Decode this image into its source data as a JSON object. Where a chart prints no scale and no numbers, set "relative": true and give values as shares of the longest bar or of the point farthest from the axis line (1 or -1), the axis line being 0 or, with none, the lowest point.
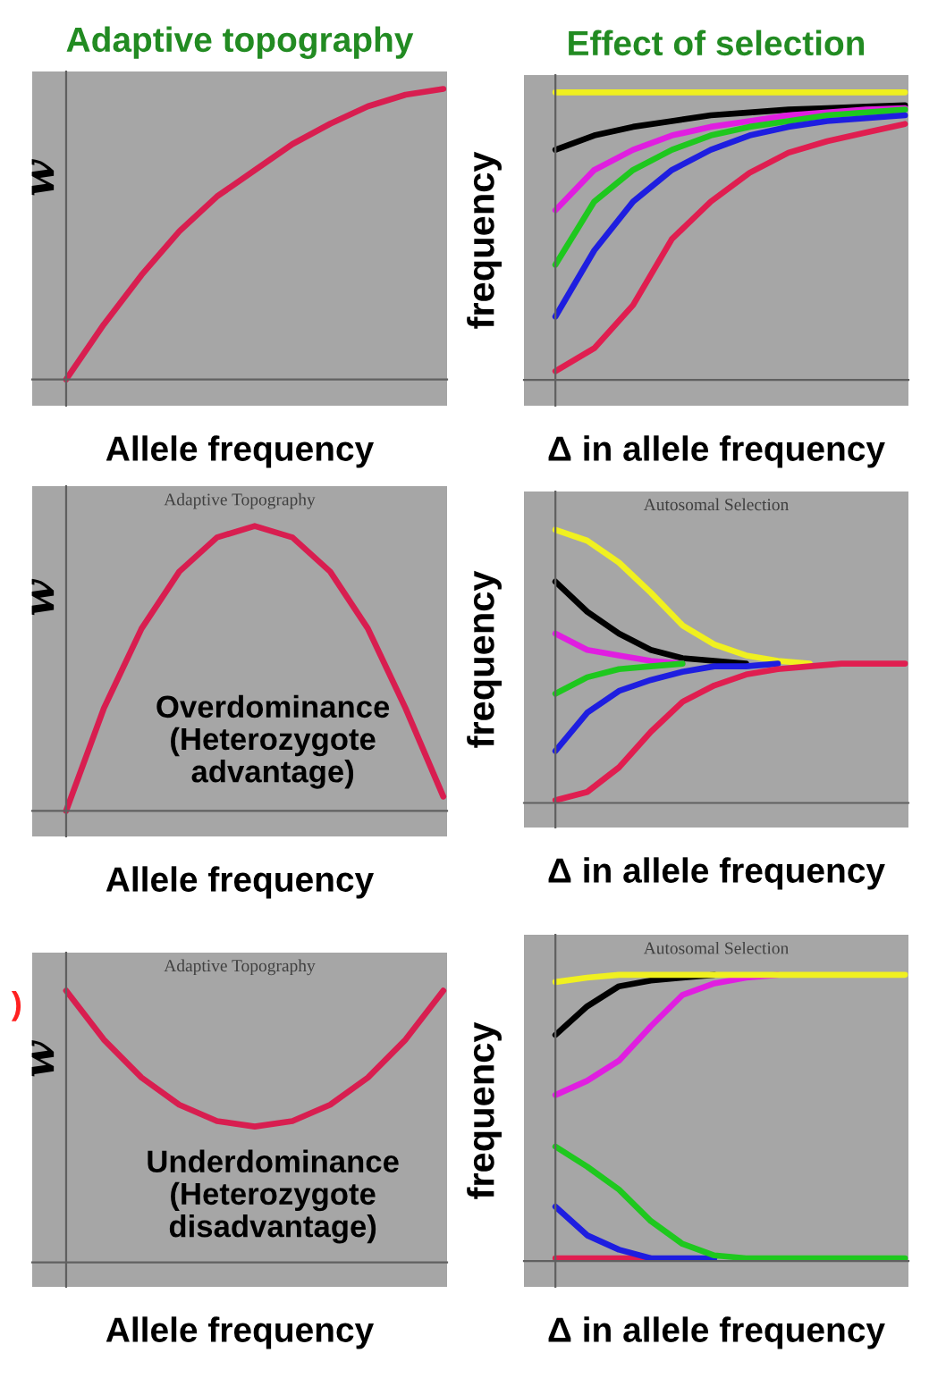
{
  "chart_data": [
    {
      "type": "line",
      "title": "Adaptive topography",
      "xlabel": "Allele frequency",
      "ylabel": "w",
      "relative": true,
      "categories": [
        null,
        null,
        null,
        null,
        null,
        null,
        null,
        null,
        null,
        null,
        null
      ],
      "series": [
        {
          "color": "#d81e50",
          "values": [
            0,
            0.19,
            0.36,
            0.51,
            0.63,
            0.72,
            0.81,
            0.88,
            0.94,
            0.98,
            1.0
          ]
        }
      ]
    },
    {
      "type": "line",
      "title": "Effect of selection",
      "xlabel": "Δ in allele frequency",
      "ylabel": "frequency",
      "relative": true,
      "categories": [
        null,
        null,
        null,
        null,
        null,
        null,
        null,
        null,
        null,
        null
      ],
      "series": [
        {
          "color": "#f0f020",
          "values": [
            1.0,
            1.0,
            1.0,
            1.0,
            1.0,
            1.0,
            1.0,
            1.0,
            1.0,
            1.0
          ]
        },
        {
          "color": "#000000",
          "values": [
            0.8,
            0.85,
            0.88,
            0.9,
            0.92,
            0.93,
            0.94,
            0.945,
            0.95,
            0.955
          ]
        },
        {
          "color": "#e01ee0",
          "values": [
            0.59,
            0.73,
            0.8,
            0.85,
            0.88,
            0.9,
            0.92,
            0.93,
            0.94,
            0.945
          ]
        },
        {
          "color": "#1ec81e",
          "values": [
            0.4,
            0.62,
            0.73,
            0.8,
            0.85,
            0.88,
            0.9,
            0.92,
            0.93,
            0.94
          ]
        },
        {
          "color": "#1e1ee0",
          "values": [
            0.22,
            0.45,
            0.62,
            0.73,
            0.8,
            0.85,
            0.88,
            0.9,
            0.91,
            0.92
          ]
        },
        {
          "color": "#e01e50",
          "values": [
            0.03,
            0.11,
            0.26,
            0.49,
            0.62,
            0.72,
            0.79,
            0.83,
            0.86,
            0.89
          ]
        }
      ]
    },
    {
      "type": "line",
      "subtitle": "Adaptive Topography",
      "xlabel": "Allele frequency",
      "ylabel": "w",
      "relative": true,
      "annotations": [
        "Overdominance\n(Heterozygote\nadvantage)"
      ],
      "categories": [
        null,
        null,
        null,
        null,
        null,
        null,
        null,
        null,
        null,
        null,
        null
      ],
      "series": [
        {
          "color": "#d81e50",
          "values": [
            0,
            0.36,
            0.64,
            0.84,
            0.96,
            1.0,
            0.96,
            0.84,
            0.64,
            0.36,
            0.05
          ]
        }
      ]
    },
    {
      "type": "line",
      "subtitle": "Autosomal Selection",
      "xlabel": "Δ in allele frequency",
      "ylabel": "frequency",
      "relative": true,
      "categories": [
        null,
        null,
        null,
        null,
        null,
        null,
        null,
        null,
        null,
        null,
        null,
        null
      ],
      "series": [
        {
          "color": "#f0f020",
          "values": [
            1.0,
            0.96,
            0.88,
            0.77,
            0.65,
            0.58,
            0.54,
            0.52,
            0.51,
            null,
            null,
            null
          ]
        },
        {
          "color": "#000000",
          "values": [
            0.81,
            0.7,
            0.62,
            0.56,
            0.53,
            0.52,
            0.51,
            null,
            null,
            null,
            null,
            null
          ]
        },
        {
          "color": "#e01ee0",
          "values": [
            0.62,
            0.56,
            0.54,
            0.52,
            0.51,
            null,
            null,
            null,
            null,
            null,
            null,
            null
          ]
        },
        {
          "color": "#1ec81e",
          "values": [
            0.4,
            0.46,
            0.49,
            0.5,
            0.51,
            null,
            null,
            null,
            null,
            null,
            null,
            null
          ]
        },
        {
          "color": "#1e1ee0",
          "values": [
            0.19,
            0.33,
            0.41,
            0.45,
            0.48,
            0.5,
            0.5,
            0.51,
            null,
            null,
            null,
            null
          ]
        },
        {
          "color": "#e01e50",
          "values": [
            0.01,
            0.04,
            0.13,
            0.26,
            0.37,
            0.43,
            0.47,
            0.49,
            0.5,
            0.51,
            0.51,
            0.51
          ]
        }
      ]
    },
    {
      "type": "line",
      "subtitle": "Adaptive Topography",
      "xlabel": "Allele frequency",
      "ylabel": "w",
      "relative": true,
      "annotations": [
        "Underdominance\n(Heterozygote\ndisadvantage)",
        ")"
      ],
      "categories": [
        null,
        null,
        null,
        null,
        null,
        null,
        null,
        null,
        null,
        null,
        null
      ],
      "series": [
        {
          "color": "#d81e50",
          "values": [
            1.0,
            0.82,
            0.68,
            0.58,
            0.52,
            0.5,
            0.52,
            0.58,
            0.68,
            0.82,
            1.0
          ]
        }
      ]
    },
    {
      "type": "line",
      "subtitle": "Autosomal Selection",
      "xlabel": "Δ in allele frequency",
      "ylabel": "frequency",
      "relative": true,
      "categories": [
        null,
        null,
        null,
        null,
        null,
        null,
        null,
        null,
        null,
        null,
        null,
        null
      ],
      "series": [
        {
          "color": "#e01e50",
          "values": [
            0.01,
            0.01,
            0.01,
            0.01,
            null,
            null,
            null,
            null,
            null,
            null,
            null,
            null
          ]
        },
        {
          "color": "#1e1ee0",
          "values": [
            0.19,
            0.09,
            0.04,
            0.01,
            0.01,
            0.01,
            null,
            null,
            null,
            null,
            null,
            null
          ]
        },
        {
          "color": "#1ec81e",
          "values": [
            0.4,
            0.33,
            0.25,
            0.14,
            0.06,
            0.02,
            0.01,
            0.01,
            0.01,
            0.01,
            0.01,
            0.01
          ]
        },
        {
          "color": "#e01ee0",
          "values": [
            0.58,
            0.63,
            0.7,
            0.82,
            0.93,
            0.97,
            0.99,
            1.0,
            null,
            null,
            null,
            null
          ]
        },
        {
          "color": "#000000",
          "values": [
            0.79,
            0.89,
            0.96,
            0.98,
            0.99,
            1.0,
            null,
            null,
            null,
            null,
            null,
            null
          ]
        },
        {
          "color": "#f0f020",
          "values": [
            0.975,
            0.99,
            1.0,
            1.0,
            1.0,
            1.0,
            1.0,
            1.0,
            1.0,
            1.0,
            1.0,
            1.0
          ]
        }
      ]
    }
  ]
}
